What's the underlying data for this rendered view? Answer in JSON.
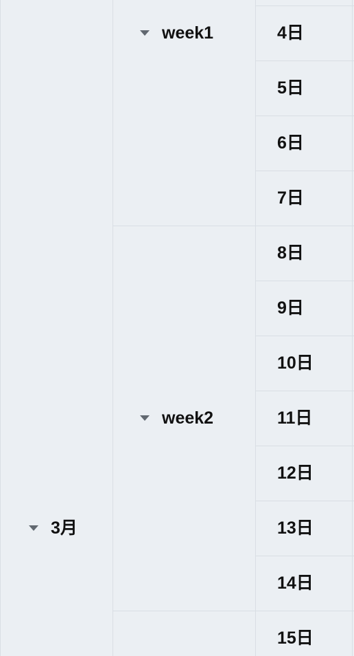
{
  "month": {
    "label": "3月"
  },
  "weeks": [
    {
      "label": "week1"
    },
    {
      "label": "week2"
    }
  ],
  "days": [
    "4日",
    "5日",
    "6日",
    "7日",
    "8日",
    "9日",
    "10日",
    "11日",
    "12日",
    "13日",
    "14日",
    "15日"
  ],
  "colors": {
    "cell_background": "#ebeff3",
    "grid_line": "#d9dee4",
    "expand_icon": "#616870",
    "text": "#111111"
  }
}
